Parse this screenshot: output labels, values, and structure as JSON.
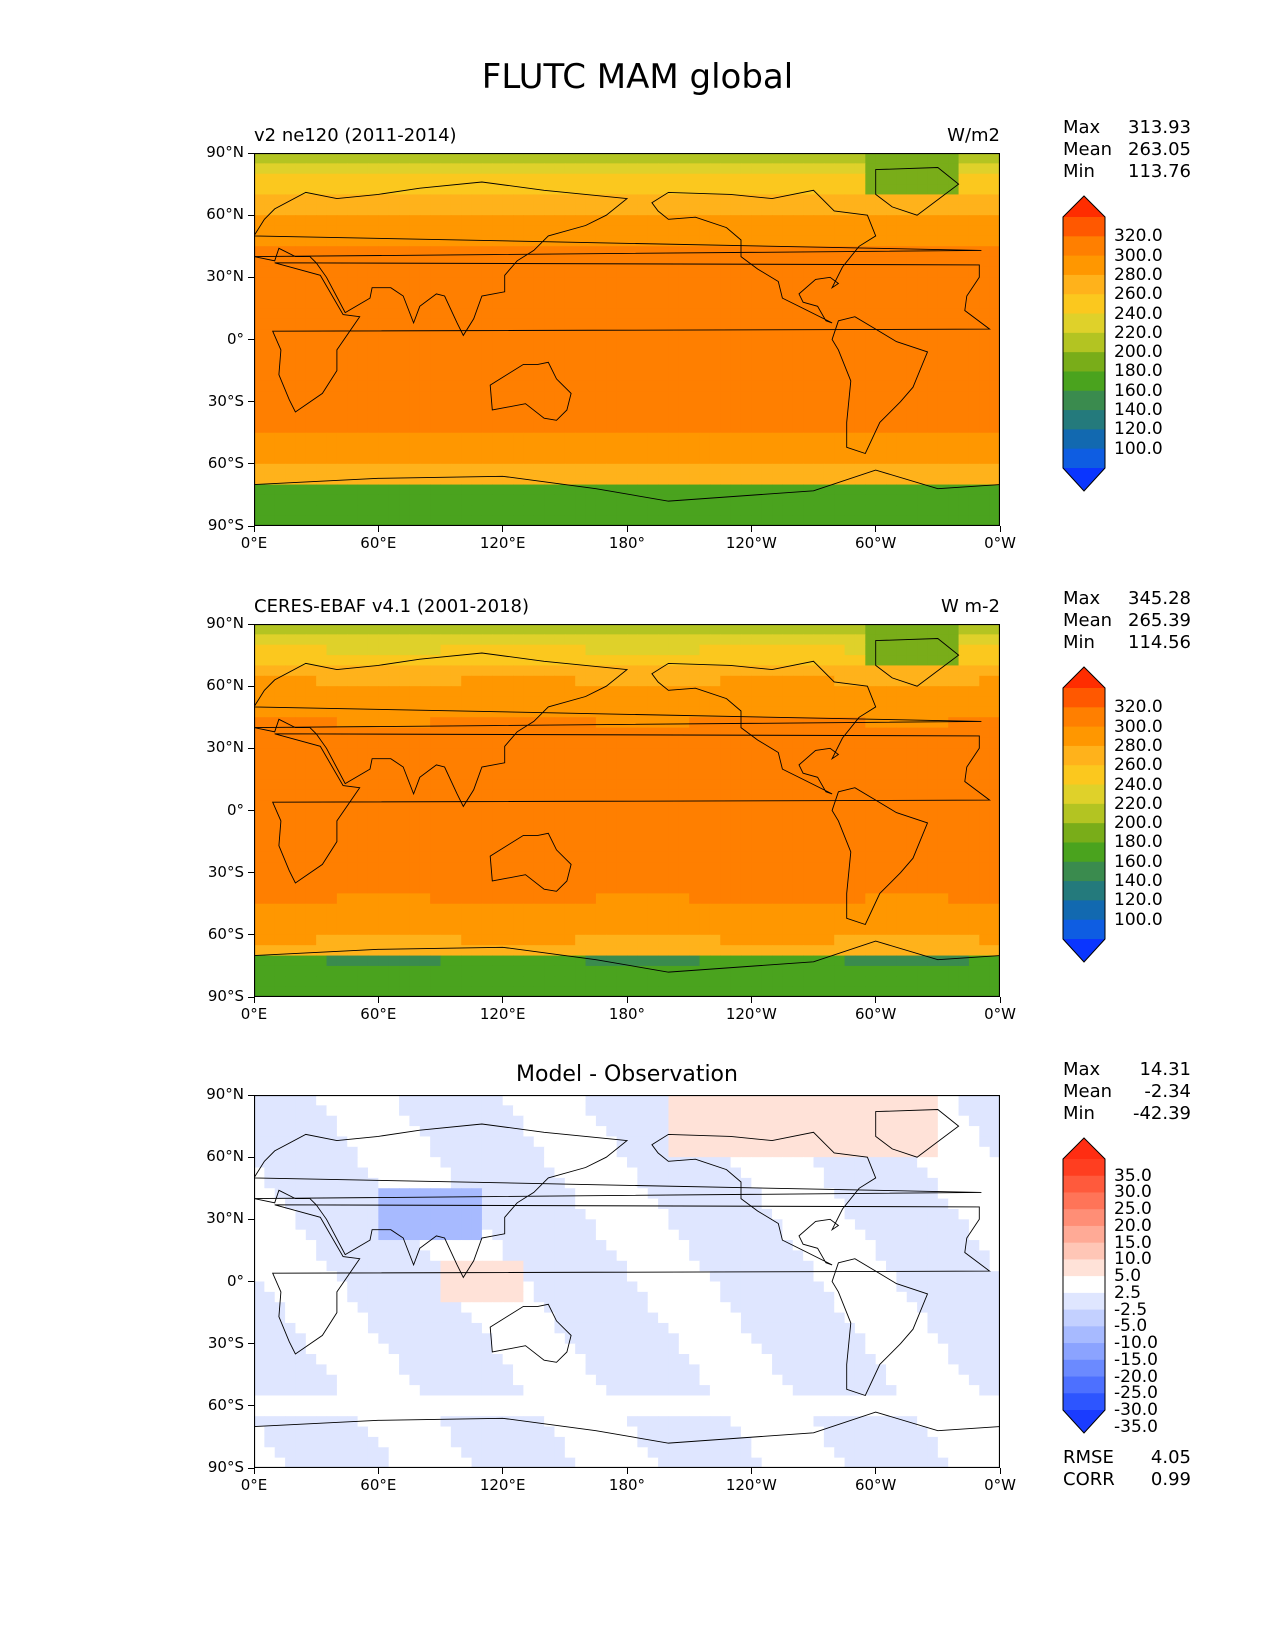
{
  "figure_title": "FLUTC MAM global",
  "x_tick_labels": [
    "0°E",
    "60°E",
    "120°E",
    "180°",
    "120°W",
    "60°W",
    "0°W"
  ],
  "y_tick_labels": [
    "90°N",
    "60°N",
    "30°N",
    "0°",
    "30°S",
    "60°S",
    "90°S"
  ],
  "panels": [
    {
      "title_left": "v2 ne120 (2011-2014)",
      "title_right": "W/m2",
      "title_center": "",
      "stats": [
        {
          "key": "Max",
          "value": "313.93"
        },
        {
          "key": "Mean",
          "value": "263.05"
        },
        {
          "key": "Min",
          "value": "113.76"
        }
      ],
      "colorbar_labels": [
        "320.0",
        "300.0",
        "280.0",
        "260.0",
        "240.0",
        "220.0",
        "200.0",
        "180.0",
        "160.0",
        "140.0",
        "120.0",
        "100.0"
      ],
      "colorbar_colors": [
        "#ff2d00",
        "#ff5800",
        "#ff7f00",
        "#ff9700",
        "#ffb21b",
        "#fbc81e",
        "#dfd12a",
        "#b3c422",
        "#79ad19",
        "#4aa31e",
        "#3a8b4e",
        "#247a7c",
        "#1269b0",
        "#0e5de2",
        "#0a35ff"
      ],
      "footer": []
    },
    {
      "title_left": "CERES-EBAF v4.1 (2001-2018)",
      "title_right": "W m-2",
      "title_center": "",
      "stats": [
        {
          "key": "Max",
          "value": "345.28"
        },
        {
          "key": "Mean",
          "value": "265.39"
        },
        {
          "key": "Min",
          "value": "114.56"
        }
      ],
      "colorbar_labels": [
        "320.0",
        "300.0",
        "280.0",
        "260.0",
        "240.0",
        "220.0",
        "200.0",
        "180.0",
        "160.0",
        "140.0",
        "120.0",
        "100.0"
      ],
      "colorbar_colors": [
        "#ff2d00",
        "#ff5800",
        "#ff7f00",
        "#ff9700",
        "#ffb21b",
        "#fbc81e",
        "#dfd12a",
        "#b3c422",
        "#79ad19",
        "#4aa31e",
        "#3a8b4e",
        "#247a7c",
        "#1269b0",
        "#0e5de2",
        "#0a35ff"
      ],
      "footer": []
    },
    {
      "title_left": "",
      "title_right": "",
      "title_center": "Model - Observation",
      "stats": [
        {
          "key": "Max",
          "value": "14.31"
        },
        {
          "key": "Mean",
          "value": "-2.34"
        },
        {
          "key": "Min",
          "value": "-42.39"
        }
      ],
      "colorbar_labels": [
        "35.0",
        "30.0",
        "25.0",
        "20.0",
        "15.0",
        "10.0",
        "5.0",
        "2.5",
        "-2.5",
        "-5.0",
        "-10.0",
        "-15.0",
        "-20.0",
        "-25.0",
        "-30.0",
        "-35.0"
      ],
      "colorbar_colors": [
        "#ff2d12",
        "#ff3e20",
        "#ff5a3c",
        "#ff7458",
        "#ff8e76",
        "#ffaa96",
        "#ffc6b6",
        "#ffe2d8",
        "#ffffff",
        "#dfe6ff",
        "#c3d0ff",
        "#a7baff",
        "#8ba3ff",
        "#6b8aff",
        "#4d70ff",
        "#2d55ff",
        "#1a3cff"
      ],
      "footer": [
        {
          "key": "RMSE",
          "value": "4.05"
        },
        {
          "key": "CORR",
          "value": "0.99"
        }
      ]
    }
  ]
}
